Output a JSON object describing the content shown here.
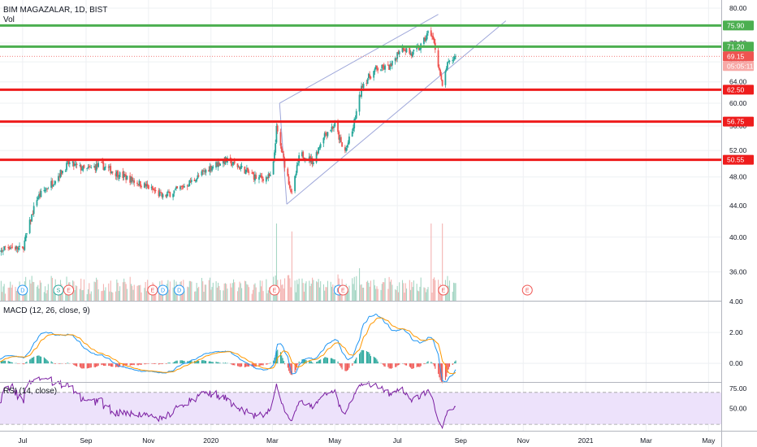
{
  "header": {
    "symbol": "BIM MAGAZALAR, 1D, BIST",
    "vol_label": "Vol",
    "macd_label": "MACD (12, 26, close, 9)",
    "rsi_label": "RSI (14, close)"
  },
  "colors": {
    "up": "#26a69a",
    "down": "#ef5350",
    "support": "#ee1c1c",
    "resistance": "#4caf50",
    "channel": "#9fa8da",
    "macd_line": "#2196f3",
    "signal_line": "#ff9800",
    "rsi_line": "#7b1fa2",
    "rsi_band": "#ede2fb",
    "price_tag": "#ef5350"
  },
  "chart_data": {
    "type": "candlestick",
    "price": {
      "ylim": [
        33,
        82
      ],
      "scale": "log",
      "y_ticks": [
        "80.00",
        "72.00",
        "68.00",
        "64.00",
        "60.00",
        "56.00",
        "52.00",
        "48.00",
        "44.00",
        "40.00",
        "36.00"
      ],
      "y_tick_values": [
        80,
        72,
        68,
        64,
        60,
        56,
        52,
        48,
        44,
        40,
        36
      ],
      "anchors": [
        [
          "2019-06-01",
          37.0
        ],
        [
          "2019-06-15",
          39.0
        ],
        [
          "2019-07-01",
          38.5
        ],
        [
          "2019-07-15",
          45.0
        ],
        [
          "2019-08-01",
          47.5
        ],
        [
          "2019-08-15",
          50.0
        ],
        [
          "2019-09-01",
          49.0
        ],
        [
          "2019-09-15",
          49.8
        ],
        [
          "2019-10-01",
          48.5
        ],
        [
          "2019-10-15",
          47.6
        ],
        [
          "2019-11-01",
          46.5
        ],
        [
          "2019-11-15",
          45.2
        ],
        [
          "2019-12-01",
          46.3
        ],
        [
          "2019-12-15",
          47.5
        ],
        [
          "2020-01-01",
          49.5
        ],
        [
          "2020-01-15",
          50.5
        ],
        [
          "2020-02-01",
          49.2
        ],
        [
          "2020-02-15",
          47.8
        ],
        [
          "2020-03-01",
          48.0
        ],
        [
          "2020-03-05",
          55.5
        ],
        [
          "2020-03-12",
          50.5
        ],
        [
          "2020-03-20",
          45.5
        ],
        [
          "2020-03-28",
          51.5
        ],
        [
          "2020-04-10",
          50.3
        ],
        [
          "2020-04-20",
          54.5
        ],
        [
          "2020-05-01",
          56.2
        ],
        [
          "2020-05-10",
          51.5
        ],
        [
          "2020-05-18",
          55.0
        ],
        [
          "2020-05-28",
          63.5
        ],
        [
          "2020-06-10",
          66.5
        ],
        [
          "2020-06-25",
          67.0
        ],
        [
          "2020-07-05",
          71.5
        ],
        [
          "2020-07-15",
          69.5
        ],
        [
          "2020-07-25",
          71.5
        ],
        [
          "2020-08-02",
          75.0
        ],
        [
          "2020-08-08",
          70.0
        ],
        [
          "2020-08-14",
          62.8
        ],
        [
          "2020-08-18",
          67.0
        ],
        [
          "2020-08-24",
          68.5
        ],
        [
          "2020-08-27",
          69.15
        ]
      ],
      "horizontal_levels": [
        {
          "value": 75.9,
          "label": "75.90",
          "kind": "resistance"
        },
        {
          "value": 71.2,
          "label": "71.20",
          "kind": "resistance"
        },
        {
          "value": 62.5,
          "label": "62.50",
          "kind": "support"
        },
        {
          "value": 56.75,
          "label": "56.75",
          "kind": "support"
        },
        {
          "value": 50.55,
          "label": "50.55",
          "kind": "support"
        }
      ],
      "last_price": {
        "value": 69.15,
        "label": "69.15",
        "countdown": "05:05:11"
      },
      "channel": {
        "upper": [
          [
            "2020-03-08",
            60.0
          ],
          [
            "2020-08-10",
            78.5
          ]
        ],
        "lower": [
          [
            "2020-03-15",
            44.2
          ],
          [
            "2020-10-15",
            77.0
          ]
        ]
      }
    },
    "events": [
      {
        "date": "2019-07-01",
        "label": "D"
      },
      {
        "date": "2019-08-05",
        "label": "S"
      },
      {
        "date": "2019-08-15",
        "label": "E"
      },
      {
        "date": "2019-11-05",
        "label": "E"
      },
      {
        "date": "2019-11-15",
        "label": "D"
      },
      {
        "date": "2019-12-01",
        "label": "D"
      },
      {
        "date": "2020-03-03",
        "label": "E"
      },
      {
        "date": "2020-05-05",
        "label": "D"
      },
      {
        "date": "2020-05-09",
        "label": "E"
      },
      {
        "date": "2020-08-15",
        "label": "E"
      },
      {
        "date": "2020-11-05",
        "label": "E"
      }
    ],
    "macd": {
      "ylim": [
        -1.2,
        4.0
      ],
      "y_ticks": [
        "4.00",
        "2.00",
        "0.00"
      ],
      "y_tick_values": [
        4,
        2,
        0
      ]
    },
    "rsi": {
      "ylim": [
        22,
        82
      ],
      "y_ticks": [
        "75.00",
        "50.00"
      ],
      "y_tick_values": [
        75,
        50
      ],
      "band": [
        30,
        70
      ]
    },
    "x_axis": {
      "ticks": [
        {
          "date": "2019-07-01",
          "label": "Jul"
        },
        {
          "date": "2019-09-01",
          "label": "Sep"
        },
        {
          "date": "2019-11-01",
          "label": "Nov"
        },
        {
          "date": "2020-01-01",
          "label": "2020"
        },
        {
          "date": "2020-03-01",
          "label": "Mar"
        },
        {
          "date": "2020-05-01",
          "label": "May"
        },
        {
          "date": "2020-07-01",
          "label": "Jul"
        },
        {
          "date": "2020-09-01",
          "label": "Sep"
        },
        {
          "date": "2020-11-01",
          "label": "Nov"
        },
        {
          "date": "2021-01-01",
          "label": "2021"
        },
        {
          "date": "2021-03-01",
          "label": "Mar"
        },
        {
          "date": "2021-05-01",
          "label": "May"
        }
      ]
    }
  }
}
